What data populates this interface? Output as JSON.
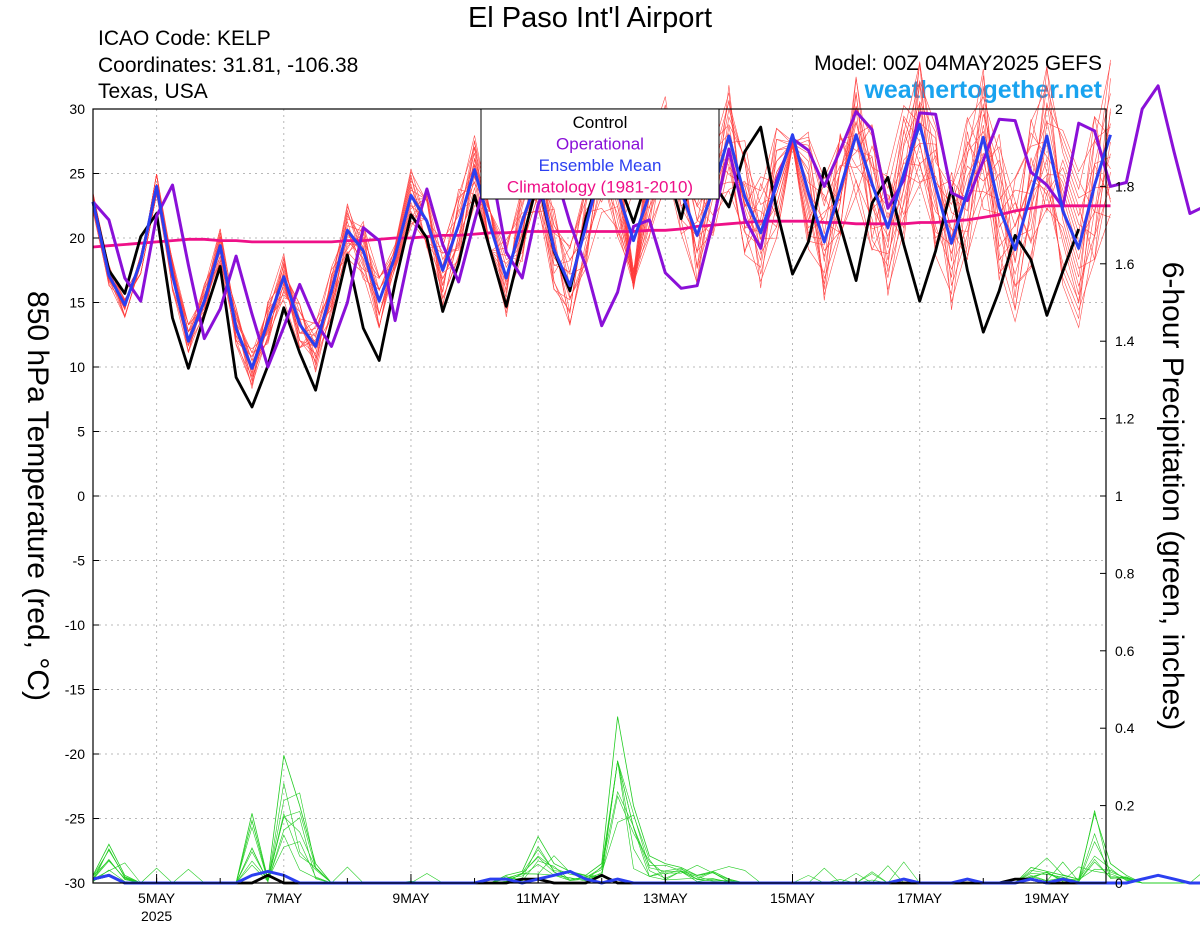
{
  "header": {
    "title": "El Paso Int'l Airport",
    "icao": "ICAO Code: KELP",
    "coords": "Coordinates: 31.81, -106.38",
    "region": "Texas, USA",
    "model": "Model: 00Z 04MAY2025 GEFS",
    "site": "weathertogether.net"
  },
  "colors": {
    "control": "#000000",
    "operational": "#8a10d8",
    "mean": "#2b3ff0",
    "climatology": "#ee1088",
    "members_temp": "#ff3b3b",
    "members_precip": "#22cc22",
    "site": "#19a3ef"
  },
  "chart_data": {
    "type": "line",
    "ylabel_left": "850 hPa Temperature (red, °C)",
    "ylabel_right": "6-hour Precipitation (green, inches)",
    "xlabel": "",
    "ylim_left": [
      -30,
      30
    ],
    "ylim_right": [
      0,
      2
    ],
    "left_ticks": [
      "30",
      "25",
      "20",
      "15",
      "10",
      "5",
      "0",
      "-5",
      "-10",
      "-15",
      "-20",
      "-25",
      "-30"
    ],
    "right_ticks": [
      "2",
      "1.8",
      "1.6",
      "1.4",
      "1.2",
      "1",
      "0.8",
      "0.6",
      "0.4",
      "0.2",
      "0"
    ],
    "x_ticks": [
      {
        "label": "5MAY",
        "sub": "2025",
        "day": 5
      },
      {
        "label": "7MAY",
        "sub": "",
        "day": 7
      },
      {
        "label": "9MAY",
        "sub": "",
        "day": 9
      },
      {
        "label": "11MAY",
        "sub": "",
        "day": 11
      },
      {
        "label": "13MAY",
        "sub": "",
        "day": 13
      },
      {
        "label": "15MAY",
        "sub": "",
        "day": 15
      },
      {
        "label": "17MAY",
        "sub": "",
        "day": 17
      },
      {
        "label": "19MAY",
        "sub": "",
        "day": 19
      }
    ],
    "x_start_day": 4.0,
    "x_step_days": 0.25,
    "grid": true,
    "legend": {
      "position": "top-center",
      "entries": [
        {
          "label": "Control",
          "color": "#000000"
        },
        {
          "label": "Operational",
          "color": "#8a10d8"
        },
        {
          "label": "Ensemble Mean",
          "color": "#2b3ff0"
        },
        {
          "label": "Climatology (1981-2010)",
          "color": "#ee1088"
        }
      ]
    },
    "series": [
      {
        "name": "Control",
        "axis": "left",
        "values": [
          22.8,
          17.5,
          15.7,
          20.1,
          21.9,
          13.8,
          9.9,
          14.0,
          17.8,
          9.2,
          6.9,
          10.1,
          14.6,
          11.1,
          8.2,
          13.5,
          18.7,
          13.0,
          10.5,
          16.5,
          21.8,
          20.0,
          14.3,
          18.0,
          23.3,
          19.0,
          14.7,
          19.7,
          24.5,
          19.0,
          15.9,
          21.5,
          25.5,
          24.6,
          21.2,
          25.1,
          25.8,
          21.5,
          26.9,
          24.3,
          22.4,
          26.7,
          28.6,
          22.2,
          17.2,
          19.7,
          25.4,
          21.0,
          16.7,
          22.7,
          24.7,
          19.5,
          15.1,
          19.0,
          23.9,
          17.5,
          12.7,
          15.9,
          20.2,
          18.3,
          14.0,
          17.4,
          20.7
        ]
      },
      {
        "name": "Operational",
        "axis": "left",
        "values": [
          22.8,
          21.4,
          16.9,
          15.1,
          21.7,
          24.1,
          17.9,
          12.2,
          14.5,
          18.6,
          14.1,
          10.0,
          13.1,
          16.4,
          13.5,
          11.6,
          15.0,
          20.8,
          19.8,
          13.6,
          19.4,
          23.8,
          19.5,
          16.6,
          21.3,
          25.8,
          18.9,
          16.9,
          22.6,
          25.4,
          21.2,
          17.8,
          13.2,
          15.8,
          20.9,
          21.4,
          17.3,
          16.1,
          16.3,
          21.2,
          26.9,
          21.5,
          19.2,
          24.5,
          27.7,
          26.8,
          24.0,
          26.8,
          29.8,
          28.4,
          22.3,
          24.5,
          29.7,
          29.6,
          23.5,
          22.9,
          26.0,
          29.2,
          29.1,
          25.1,
          24.1,
          22.4,
          28.9,
          28.3,
          24.0,
          24.3,
          30.0,
          31.8,
          26.7,
          21.9,
          22.5,
          26.5,
          30.1
        ]
      },
      {
        "name": "Ensemble Mean",
        "axis": "left",
        "values": [
          22.8,
          17.1,
          14.8,
          18.2,
          24.0,
          17.1,
          12.0,
          15.1,
          19.4,
          13.0,
          9.9,
          13.5,
          17.0,
          13.3,
          11.6,
          15.9,
          20.6,
          19.0,
          15.1,
          18.6,
          23.3,
          21.3,
          17.5,
          21.0,
          25.3,
          20.9,
          16.9,
          21.3,
          24.8,
          19.1,
          16.3,
          20.9,
          25.6,
          23.6,
          19.8,
          23.4,
          27.0,
          23.6,
          20.2,
          23.7,
          27.9,
          23.2,
          20.4,
          24.1,
          28.0,
          23.5,
          19.7,
          23.8,
          28.0,
          24.2,
          20.8,
          25.0,
          28.8,
          24.0,
          19.6,
          23.6,
          27.8,
          22.4,
          19.1,
          23.4,
          27.9,
          22.1,
          19.2,
          24.1,
          28.0
        ]
      },
      {
        "name": "Climatology (1981-2010)",
        "axis": "left",
        "values": [
          19.3,
          19.4,
          19.5,
          19.6,
          19.7,
          19.8,
          19.9,
          19.9,
          19.8,
          19.8,
          19.7,
          19.7,
          19.7,
          19.7,
          19.7,
          19.7,
          19.8,
          19.8,
          19.9,
          20.0,
          20.0,
          20.1,
          20.2,
          20.2,
          20.3,
          20.4,
          20.4,
          20.5,
          20.5,
          20.5,
          20.5,
          20.5,
          20.5,
          20.5,
          20.5,
          20.6,
          20.6,
          20.7,
          20.9,
          21.0,
          21.1,
          21.2,
          21.3,
          21.3,
          21.3,
          21.3,
          21.2,
          21.2,
          21.1,
          21.1,
          21.1,
          21.1,
          21.2,
          21.2,
          21.3,
          21.4,
          21.6,
          21.8,
          22.1,
          22.3,
          22.5,
          22.5,
          22.5,
          22.5,
          22.5
        ]
      },
      {
        "name": "Control",
        "axis": "right",
        "values": [
          0.01,
          0.02,
          0,
          0,
          0,
          0,
          0,
          0,
          0,
          0,
          0,
          0.02,
          0,
          0,
          0,
          0,
          0,
          0,
          0,
          0,
          0,
          0,
          0,
          0,
          0,
          0,
          0,
          0.01,
          0.01,
          0,
          0,
          0,
          0.02,
          0,
          0,
          0,
          0,
          0,
          0,
          0,
          0,
          0,
          0,
          0,
          0,
          0,
          0,
          0,
          0,
          0,
          0,
          0,
          0,
          0,
          0,
          0,
          0,
          0,
          0.01,
          0.01,
          0,
          0,
          0,
          0,
          0
        ]
      },
      {
        "name": "Ensemble Mean",
        "axis": "right",
        "values": [
          0.01,
          0.02,
          0,
          0,
          0,
          0,
          0,
          0,
          0,
          0,
          0.02,
          0.03,
          0.02,
          0,
          0,
          0,
          0,
          0,
          0,
          0,
          0,
          0,
          0,
          0,
          0,
          0.01,
          0.01,
          0,
          0.01,
          0.02,
          0.03,
          0.01,
          0,
          0.01,
          0,
          0,
          0,
          0,
          0,
          0,
          0,
          0,
          0,
          0,
          0,
          0,
          0,
          0,
          0,
          0,
          0,
          0.01,
          0,
          0,
          0,
          0.01,
          0,
          0,
          0,
          0.01,
          0,
          0.01,
          0,
          0,
          0,
          0,
          0.01,
          0.02,
          0.01,
          0,
          0,
          0
        ]
      },
      {
        "name": "",
        "axis": "right",
        "values": [
          0.02,
          0.1,
          0.02,
          0,
          0,
          0,
          0,
          0,
          0,
          0,
          0.18,
          0.01,
          0.33,
          0.2,
          0.05,
          0,
          0,
          0,
          0,
          0,
          0,
          0,
          0,
          0,
          0,
          0,
          0.02,
          0.03,
          0.12,
          0.05,
          0.03,
          0.02,
          0.05,
          0.43,
          0.2,
          0.07,
          0.05,
          0.04,
          0.02,
          0.03,
          0.01,
          0,
          0,
          0,
          0,
          0,
          0,
          0,
          0,
          0,
          0,
          0,
          0,
          0,
          0,
          0,
          0,
          0,
          0,
          0.04,
          0.03,
          0.02,
          0.01,
          0.18,
          0.05,
          0.02,
          0,
          0,
          0,
          0,
          0,
          0,
          0.04,
          0.05,
          0.1,
          0.17,
          0.03
        ]
      }
    ]
  }
}
